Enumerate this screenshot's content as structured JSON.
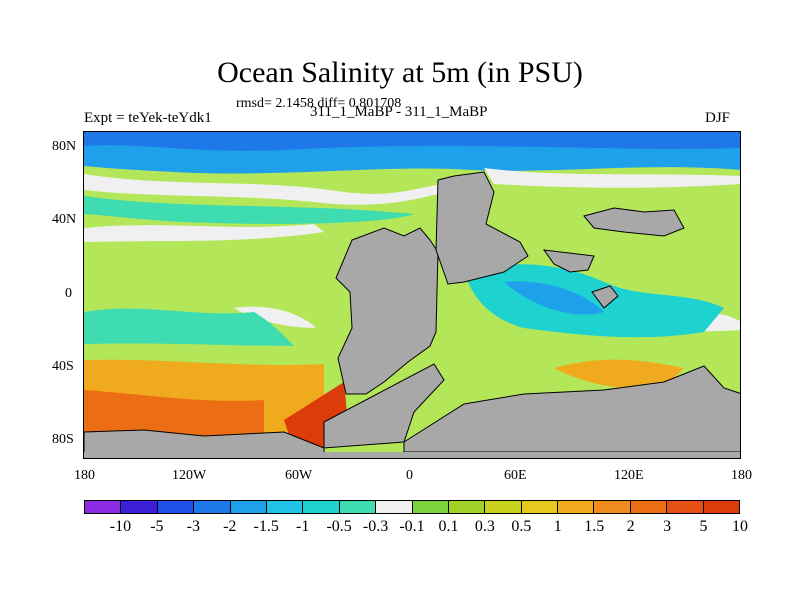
{
  "title": "Ocean Salinity at 5m (in PSU)",
  "stats": "rmsd= 2.1458 diff= 0.801708",
  "subtitle": "311_1_MaBP - 311_1_MaBP",
  "expt": "Expt = teYek-teYdk1",
  "season": "DJF",
  "y_ticks": [
    "80N",
    "40N",
    "0",
    "40S",
    "80S"
  ],
  "x_ticks": [
    "180",
    "120W",
    "60W",
    "0",
    "60E",
    "120E",
    "180"
  ],
  "colorbar": {
    "labels": [
      "-10",
      "-5",
      "-3",
      "-2",
      "-1.5",
      "-1",
      "-0.5",
      "-0.3",
      "-0.1",
      "0.1",
      "0.3",
      "0.5",
      "1",
      "1.5",
      "2",
      "3",
      "5",
      "10"
    ],
    "colors": [
      "#8a2be2",
      "#3b1fd6",
      "#1e50e6",
      "#1e78e8",
      "#1ea0ea",
      "#1ec3e6",
      "#1ed2d0",
      "#3edcb0",
      "#f0f0f0",
      "#7cd23c",
      "#a0d228",
      "#c8d21e",
      "#e6c81e",
      "#f0aa1e",
      "#f08c1e",
      "#eb6e14",
      "#e65014",
      "#dc3c0a"
    ]
  },
  "colors": {
    "land": "#a8a8a8",
    "near_zero": "#f0f0f0"
  }
}
